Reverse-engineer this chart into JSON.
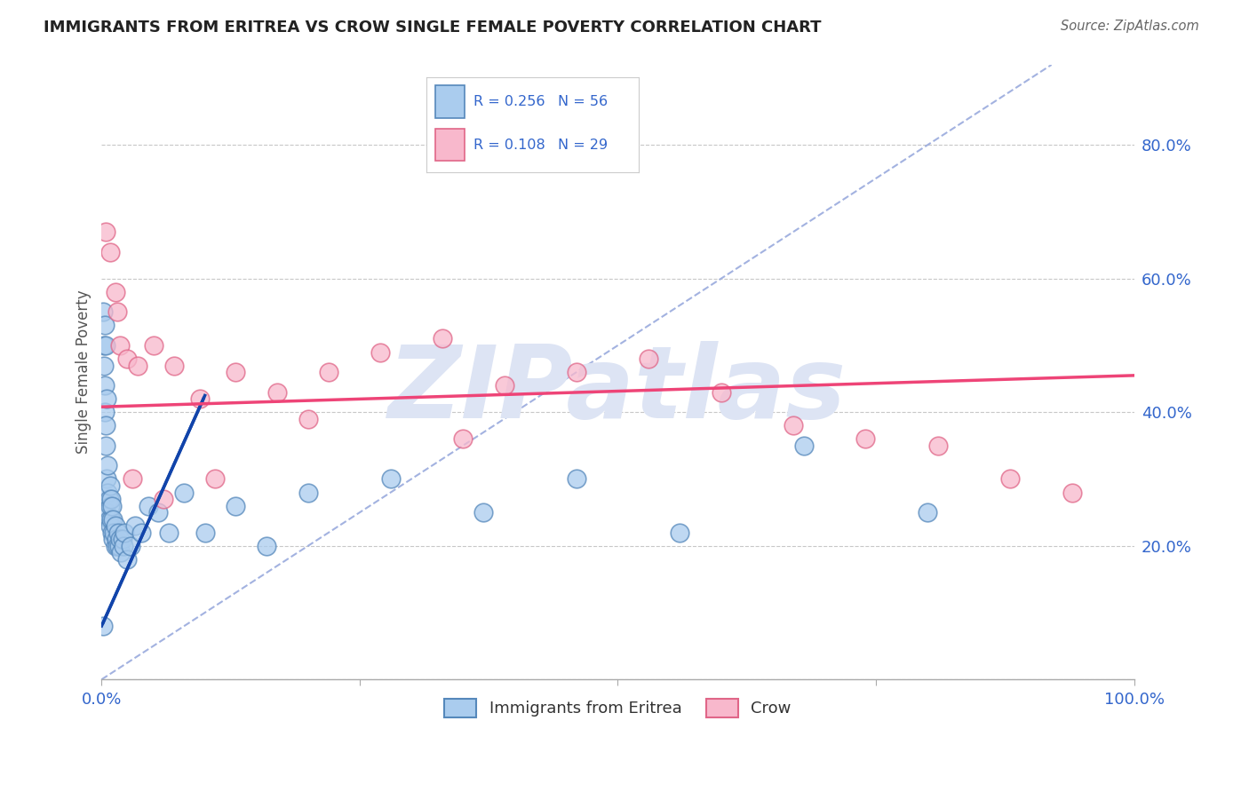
{
  "title": "IMMIGRANTS FROM ERITREA VS CROW SINGLE FEMALE POVERTY CORRELATION CHART",
  "source": "Source: ZipAtlas.com",
  "ylabel": "Single Female Poverty",
  "xlim": [
    0,
    1.0
  ],
  "ylim": [
    0,
    0.92
  ],
  "xtick_positions": [
    0.0,
    0.25,
    0.5,
    0.75,
    1.0
  ],
  "xticklabels": [
    "0.0%",
    "",
    "",
    "",
    "100.0%"
  ],
  "ytick_positions": [
    0.0,
    0.2,
    0.4,
    0.6,
    0.8
  ],
  "yticklabels_right": [
    "",
    "20.0%",
    "40.0%",
    "60.0%",
    "80.0%"
  ],
  "grid_color": "#c8c8c8",
  "background_color": "#ffffff",
  "series1_label": "Immigrants from Eritrea",
  "series1_R": "0.256",
  "series1_N": "56",
  "series1_face": "#aaccee",
  "series1_edge": "#5588bb",
  "series2_label": "Crow",
  "series2_R": "0.108",
  "series2_N": "29",
  "series2_face": "#f8b8cc",
  "series2_edge": "#e06688",
  "trend1_color": "#1144aa",
  "trend2_color": "#ee4477",
  "diag_color": "#99aadd",
  "R_N_color": "#3366cc",
  "watermark": "ZIPatlas",
  "watermark_color": "#dde4f4",
  "series1_x": [
    0.001,
    0.001,
    0.002,
    0.002,
    0.003,
    0.003,
    0.003,
    0.004,
    0.004,
    0.004,
    0.005,
    0.005,
    0.005,
    0.006,
    0.006,
    0.007,
    0.007,
    0.008,
    0.008,
    0.008,
    0.009,
    0.009,
    0.01,
    0.01,
    0.011,
    0.011,
    0.012,
    0.013,
    0.013,
    0.014,
    0.015,
    0.016,
    0.017,
    0.018,
    0.019,
    0.02,
    0.021,
    0.022,
    0.025,
    0.028,
    0.032,
    0.038,
    0.045,
    0.055,
    0.065,
    0.08,
    0.1,
    0.13,
    0.16,
    0.2,
    0.28,
    0.37,
    0.46,
    0.56,
    0.68,
    0.8
  ],
  "series1_y": [
    0.08,
    0.55,
    0.5,
    0.47,
    0.44,
    0.4,
    0.53,
    0.38,
    0.35,
    0.5,
    0.42,
    0.3,
    0.25,
    0.28,
    0.32,
    0.27,
    0.24,
    0.29,
    0.26,
    0.23,
    0.27,
    0.24,
    0.26,
    0.22,
    0.24,
    0.21,
    0.22,
    0.23,
    0.2,
    0.21,
    0.2,
    0.22,
    0.2,
    0.21,
    0.19,
    0.21,
    0.2,
    0.22,
    0.18,
    0.2,
    0.23,
    0.22,
    0.26,
    0.25,
    0.22,
    0.28,
    0.22,
    0.26,
    0.2,
    0.28,
    0.3,
    0.25,
    0.3,
    0.22,
    0.35,
    0.25
  ],
  "series2_x": [
    0.004,
    0.008,
    0.013,
    0.018,
    0.025,
    0.035,
    0.05,
    0.07,
    0.095,
    0.13,
    0.17,
    0.22,
    0.27,
    0.33,
    0.39,
    0.46,
    0.53,
    0.6,
    0.67,
    0.74,
    0.81,
    0.88,
    0.94,
    0.015,
    0.03,
    0.06,
    0.11,
    0.2,
    0.35
  ],
  "series2_y": [
    0.67,
    0.64,
    0.58,
    0.5,
    0.48,
    0.47,
    0.5,
    0.47,
    0.42,
    0.46,
    0.43,
    0.46,
    0.49,
    0.51,
    0.44,
    0.46,
    0.48,
    0.43,
    0.38,
    0.36,
    0.35,
    0.3,
    0.28,
    0.55,
    0.3,
    0.27,
    0.3,
    0.39,
    0.36
  ],
  "trend1_x0": 0.0,
  "trend1_x1": 0.1,
  "trend1_y0": 0.08,
  "trend1_y1": 0.425,
  "trend2_x0": 0.0,
  "trend2_x1": 1.0,
  "trend2_y0": 0.408,
  "trend2_y1": 0.455
}
